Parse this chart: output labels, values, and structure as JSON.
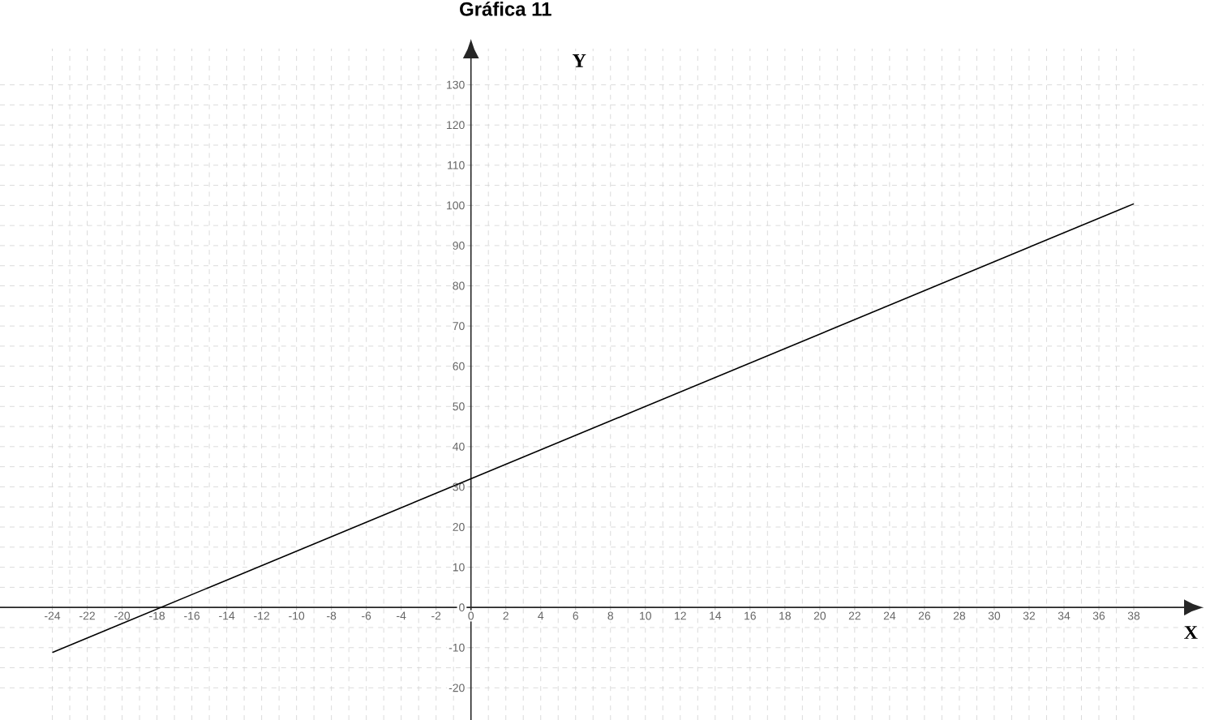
{
  "chart_data": {
    "type": "line",
    "title": "Gráfica 11",
    "xlabel": "X",
    "ylabel": "Y",
    "x": [
      -24,
      38
    ],
    "series": [
      {
        "color": "#000000",
        "values": [
          -11.2,
          100.4
        ]
      }
    ],
    "xlim": [
      -27,
      42
    ],
    "ylim": [
      -28,
      139
    ],
    "xticks": [
      -24,
      -22,
      -20,
      -18,
      -16,
      -14,
      -12,
      -10,
      -8,
      -6,
      -4,
      -2,
      0,
      2,
      4,
      6,
      8,
      10,
      12,
      14,
      16,
      18,
      20,
      22,
      24,
      26,
      28,
      30,
      32,
      34,
      36,
      38
    ],
    "yticks": [
      -20,
      -10,
      0,
      10,
      20,
      30,
      40,
      50,
      60,
      70,
      80,
      90,
      100,
      110,
      120,
      130
    ],
    "grid": true
  }
}
